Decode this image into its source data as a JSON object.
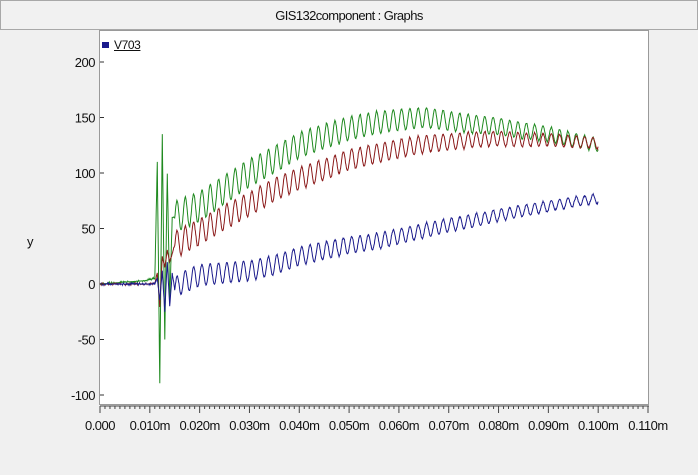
{
  "window": {
    "title": "GIS132component : Graphs"
  },
  "chart_data": {
    "type": "line",
    "title": "",
    "xlabel": "",
    "ylabel": "y",
    "xlim": [
      0.0,
      0.11
    ],
    "ylim": [
      -100,
      200
    ],
    "xticks": [
      0.0,
      0.01,
      0.02,
      0.03,
      0.04,
      0.05,
      0.06,
      0.07,
      0.08,
      0.09,
      0.1,
      0.11
    ],
    "xtick_labels": [
      "0.000",
      "0.010m",
      "0.020m",
      "0.030m",
      "0.040m",
      "0.050m",
      "0.060m",
      "0.070m",
      "0.080m",
      "0.090m",
      "0.100m",
      "0.110m"
    ],
    "yticks": [
      -100,
      -50,
      0,
      50,
      100,
      150,
      200
    ],
    "ytick_labels": [
      "-100",
      "-50",
      "0",
      "50",
      "100",
      "150",
      "200"
    ],
    "legend": {
      "position": "top-left",
      "entries": [
        "V703"
      ]
    },
    "grid": false,
    "series": [
      {
        "name": "V703",
        "color": "#1a1a8c",
        "x": [
          0.0,
          0.011,
          0.0115,
          0.012,
          0.0125,
          0.013,
          0.0135,
          0.014,
          0.0145,
          0.015,
          0.016,
          0.02,
          0.025,
          0.03,
          0.035,
          0.04,
          0.045,
          0.05,
          0.055,
          0.06,
          0.065,
          0.07,
          0.075,
          0.08,
          0.085,
          0.09,
          0.095,
          0.1
        ],
        "y": [
          0,
          0,
          5,
          -15,
          12,
          -25,
          20,
          -20,
          10,
          -5,
          0,
          8,
          10,
          12,
          17,
          25,
          30,
          35,
          38,
          43,
          48,
          53,
          57,
          62,
          66,
          70,
          74,
          77
        ],
        "oscillation_amplitude": 10
      },
      {
        "color": "#8b1a1a",
        "x": [
          0.0,
          0.011,
          0.0115,
          0.012,
          0.0125,
          0.013,
          0.0135,
          0.014,
          0.015,
          0.02,
          0.025,
          0.03,
          0.035,
          0.04,
          0.045,
          0.05,
          0.055,
          0.06,
          0.065,
          0.07,
          0.075,
          0.08,
          0.085,
          0.09,
          0.095,
          0.1
        ],
        "y": [
          0,
          0,
          10,
          -20,
          25,
          15,
          30,
          20,
          35,
          47,
          60,
          72,
          85,
          95,
          103,
          112,
          117,
          122,
          126,
          128,
          130,
          131,
          130,
          130,
          128,
          127
        ],
        "oscillation_amplitude": 12
      },
      {
        "color": "#1f8a1f",
        "x": [
          0.0,
          0.009,
          0.011,
          0.0115,
          0.012,
          0.0125,
          0.013,
          0.0135,
          0.014,
          0.0145,
          0.015,
          0.02,
          0.025,
          0.03,
          0.035,
          0.04,
          0.045,
          0.05,
          0.055,
          0.06,
          0.065,
          0.07,
          0.075,
          0.08,
          0.085,
          0.09,
          0.095,
          0.1
        ],
        "y": [
          0,
          3,
          5,
          110,
          -90,
          135,
          -50,
          100,
          -15,
          60,
          60,
          70,
          85,
          100,
          112,
          125,
          133,
          140,
          145,
          148,
          150,
          147,
          144,
          142,
          138,
          135,
          130,
          125
        ],
        "oscillation_amplitude": 14
      }
    ]
  }
}
